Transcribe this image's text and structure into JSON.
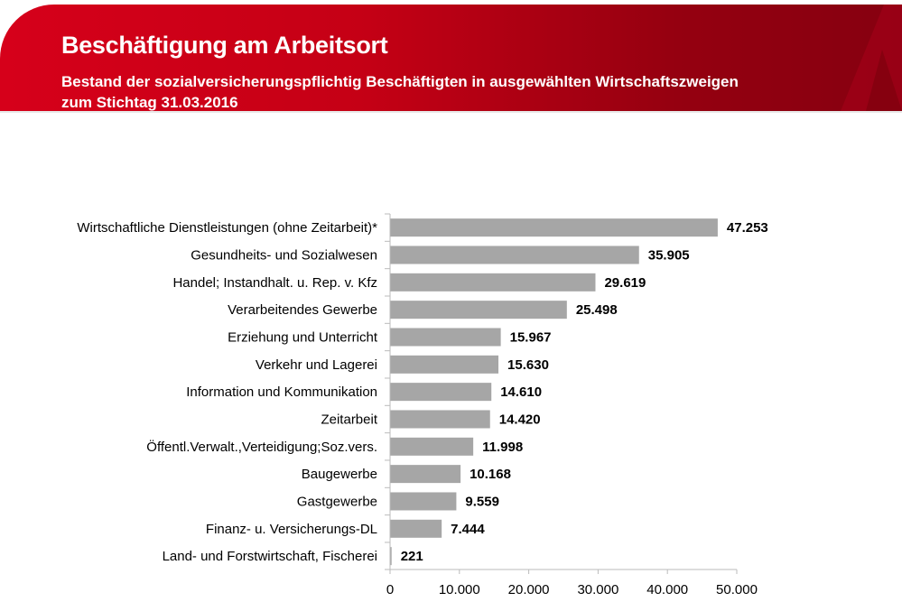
{
  "header": {
    "title": "Beschäftigung am Arbeitsort",
    "subtitle_line1": "Bestand der sozialversicherungspflichtig Beschäftigten in ausgewählten Wirtschaftszweigen",
    "subtitle_line2": "zum Stichtag 31.03.2016",
    "brand_color": "#d6001a"
  },
  "chart_data": {
    "type": "bar",
    "orientation": "horizontal",
    "categories": [
      "Wirtschaftliche Dienstleistungen (ohne Zeitarbeit)*",
      "Gesundheits- und Sozialwesen",
      "Handel; Instandhalt. u. Rep. v. Kfz",
      "Verarbeitendes Gewerbe",
      "Erziehung und Unterricht",
      "Verkehr und Lagerei",
      "Information und Kommunikation",
      "Zeitarbeit",
      "Öffentl.Verwalt.,Verteidigung;Soz.vers.",
      "Baugewerbe",
      "Gastgewerbe",
      "Finanz- u. Versicherungs-DL",
      "Land- und Forstwirtschaft, Fischerei"
    ],
    "values": [
      47253,
      35905,
      29619,
      25498,
      15967,
      15630,
      14610,
      14420,
      11998,
      10168,
      9559,
      7444,
      221
    ],
    "value_labels": [
      "47.253",
      "35.905",
      "29.619",
      "25.498",
      "15.967",
      "15.630",
      "14.610",
      "14.420",
      "11.998",
      "10.168",
      "9.559",
      "7.444",
      "221"
    ],
    "xlim": [
      0,
      50000
    ],
    "x_ticks": [
      "0",
      "10.000",
      "20.000",
      "30.000",
      "40.000",
      "50.000"
    ],
    "bar_color": "#a6a6a6",
    "grid": false
  }
}
